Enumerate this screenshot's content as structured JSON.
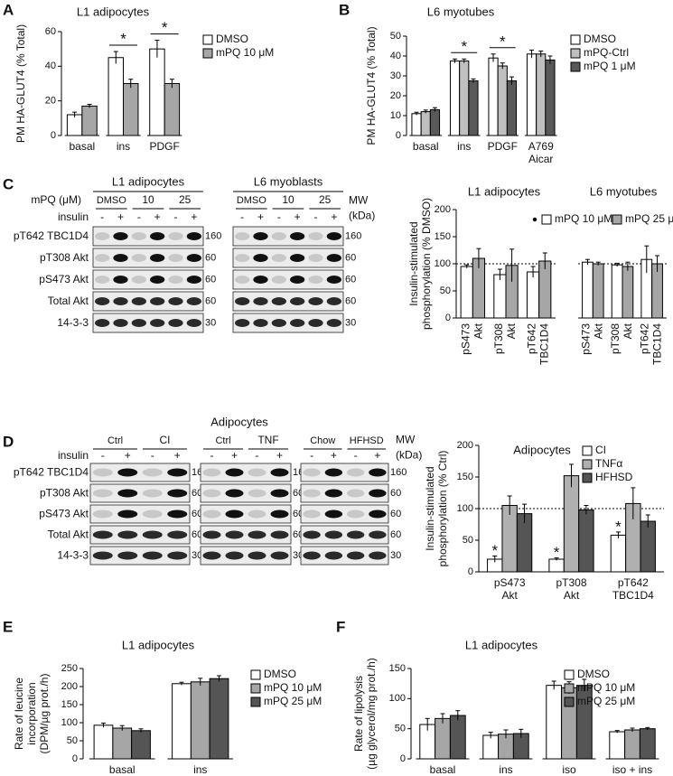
{
  "panel_letters": [
    "A",
    "B",
    "C",
    "D",
    "E",
    "F"
  ],
  "chart_data": [
    {
      "type": "bar",
      "title": "L1 adipocytes",
      "ylabel": "PM HA-GLUT4 (% Total)",
      "categories": [
        "basal",
        "ins",
        "PDGF"
      ],
      "ylim": [
        0,
        60
      ],
      "yticks": [
        0,
        20,
        40,
        60
      ],
      "series": [
        {
          "name": "DMSO",
          "color": "#ffffff",
          "values": [
            12,
            45,
            50
          ],
          "errors": [
            1.5,
            3.5,
            5
          ]
        },
        {
          "name": "mPQ 10 μM",
          "color": "#a6a6a6",
          "values": [
            17,
            30,
            30
          ],
          "errors": [
            1,
            2.5,
            2.5
          ]
        }
      ],
      "annotations": [
        {
          "text": "*",
          "category": "ins"
        },
        {
          "text": "*",
          "category": "PDGF"
        }
      ]
    },
    {
      "type": "bar",
      "title": "L6 myotubes",
      "ylabel": "PM HA-GLUT4 (% Total)",
      "categories": [
        "basal",
        "ins",
        "PDGF",
        "A769\nAicar"
      ],
      "ylim": [
        0,
        50
      ],
      "yticks": [
        0,
        10,
        20,
        30,
        40,
        50
      ],
      "series": [
        {
          "name": "DMSO",
          "color": "#ffffff",
          "values": [
            11,
            37.5,
            39,
            41
          ],
          "errors": [
            0.7,
            1,
            2,
            2
          ]
        },
        {
          "name": "mPQ-Ctrl",
          "color": "#bfbfbf",
          "values": [
            12,
            37.5,
            35,
            41
          ],
          "errors": [
            0.8,
            1,
            1.5,
            1.5
          ]
        },
        {
          "name": "mPQ 1 μM",
          "color": "#595959",
          "values": [
            13,
            27.5,
            27.5,
            38
          ],
          "errors": [
            1,
            1,
            2,
            2
          ]
        }
      ],
      "annotations": [
        {
          "text": "*",
          "category": "ins"
        },
        {
          "text": "*",
          "category": "PDGF"
        }
      ]
    },
    {
      "type": "bar",
      "title": "L1 adipocytes",
      "ylabel": "Insulin-stimulated\nphosphorylation (% DMSO)",
      "categories": [
        "pS473\nAkt",
        "pT308\nAkt",
        "pT642\nTBC1D4"
      ],
      "ylim": [
        0,
        200
      ],
      "yticks": [
        0,
        50,
        100,
        150,
        200
      ],
      "reference_line": 100,
      "series": [
        {
          "name": "mPQ 10 μM",
          "color": "#ffffff",
          "values": [
            95,
            80,
            85
          ],
          "errors": [
            3,
            10,
            10
          ]
        },
        {
          "name": "mPQ 25 μM",
          "color": "#a6a6a6",
          "values": [
            110,
            97,
            105
          ],
          "errors": [
            18,
            30,
            15
          ]
        }
      ]
    },
    {
      "type": "bar",
      "title": "L6 myotubes",
      "categories": [
        "pS473\nAkt",
        "pT308\nAkt",
        "pT642\nTBC1D4"
      ],
      "ylim": [
        0,
        200
      ],
      "reference_line": 100,
      "series": [
        {
          "color": "#ffffff",
          "values": [
            103,
            98,
            108
          ],
          "errors": [
            5,
            3,
            25
          ]
        },
        {
          "color": "#a6a6a6",
          "values": [
            100,
            95,
            100
          ],
          "errors": [
            3,
            8,
            15
          ]
        }
      ]
    },
    {
      "type": "bar",
      "title": "Adipocytes",
      "ylabel": "Insulin-stimulated\nphosphorylation (% Ctrl)",
      "categories": [
        "pS473\nAkt",
        "pT308\nAkt",
        "pT642\nTBC1D4"
      ],
      "ylim": [
        0,
        200
      ],
      "yticks": [
        0,
        50,
        100,
        150,
        200
      ],
      "reference_line": 100,
      "series": [
        {
          "name": "CI",
          "color": "#ffffff",
          "values": [
            20,
            20,
            58
          ],
          "errors": [
            5,
            2,
            5
          ]
        },
        {
          "name": "TNFα",
          "color": "#b0b0b0",
          "values": [
            105,
            152,
            108
          ],
          "errors": [
            15,
            18,
            25
          ]
        },
        {
          "name": "HFHSD",
          "color": "#555555",
          "values": [
            92,
            98,
            80
          ],
          "errors": [
            15,
            7,
            10
          ]
        }
      ],
      "annotations": [
        {
          "text": "*",
          "category": "pS473\nAkt",
          "series": "CI"
        },
        {
          "text": "*",
          "category": "pT308\nAkt",
          "series": "CI"
        },
        {
          "text": "*",
          "category": "pT642\nTBC1D4",
          "series": "CI"
        }
      ]
    },
    {
      "type": "bar",
      "title": "L1 adipocytes",
      "ylabel": "Rate of leucine\nincorporation\n(DPM/µg prot./h)",
      "categories": [
        "basal",
        "ins"
      ],
      "ylim": [
        0,
        250
      ],
      "yticks": [
        0,
        50,
        100,
        150,
        200,
        250
      ],
      "series": [
        {
          "name": "DMSO",
          "color": "#ffffff",
          "values": [
            93,
            208
          ],
          "errors": [
            6,
            4
          ]
        },
        {
          "name": "mPQ 10 μM",
          "color": "#a6a6a6",
          "values": [
            85,
            213
          ],
          "errors": [
            7,
            10
          ]
        },
        {
          "name": "mPQ 25 μM",
          "color": "#555555",
          "values": [
            78,
            222
          ],
          "errors": [
            5,
            8
          ]
        }
      ]
    },
    {
      "type": "bar",
      "title": "L1 adipocytes",
      "ylabel": "Rate of lipolysis\n(µg glycerol/mg prot./h)",
      "categories": [
        "basal",
        "ins",
        "iso",
        "iso + ins"
      ],
      "ylim": [
        0,
        150
      ],
      "yticks": [
        0,
        50,
        100,
        150
      ],
      "series": [
        {
          "name": "DMSO",
          "color": "#ffffff",
          "values": [
            57,
            39,
            122,
            45
          ],
          "errors": [
            10,
            5,
            7,
            2
          ]
        },
        {
          "name": "mPQ 10 μM",
          "color": "#a6a6a6",
          "values": [
            67,
            41,
            118,
            48
          ],
          "errors": [
            8,
            7,
            10,
            3
          ]
        },
        {
          "name": "mPQ 25 μM",
          "color": "#555555",
          "values": [
            72,
            42,
            122,
            50
          ],
          "errors": [
            8,
            7,
            10,
            2
          ]
        }
      ]
    }
  ],
  "blots": [
    {
      "treatment_label": "mPQ (μM)",
      "insulin_label": "insulin",
      "mw_label": "MW\n(kDa)",
      "panels": [
        {
          "title": "L1 adipocytes",
          "groups": [
            "DMSO",
            "10",
            "25"
          ],
          "insulin": [
            "-",
            "+",
            "-",
            "+",
            "-",
            "+"
          ]
        },
        {
          "title": "L6 myoblasts",
          "groups": [
            "DMSO",
            "10",
            "25"
          ],
          "insulin": [
            "-",
            "+",
            "-",
            "+",
            "-",
            "+"
          ]
        }
      ],
      "rows": [
        {
          "name": "pT642 TBC1D4",
          "mw": "160"
        },
        {
          "name": "pT308 Akt",
          "mw": "60"
        },
        {
          "name": "pS473 Akt",
          "mw": "60"
        },
        {
          "name": "Total Akt",
          "mw": "60"
        },
        {
          "name": "14-3-3",
          "mw": "30"
        }
      ]
    },
    {
      "title": "Adipocytes",
      "insulin_label": "insulin",
      "mw_label": "MW\n(kDa)",
      "panels": [
        {
          "groups": [
            "Ctrl",
            "CI"
          ],
          "insulin": [
            "-",
            "+",
            "-",
            "+"
          ]
        },
        {
          "groups": [
            "Ctrl",
            "TNF"
          ],
          "insulin": [
            "-",
            "+",
            "-",
            "+"
          ]
        },
        {
          "groups": [
            "Chow",
            "HFHSD"
          ],
          "insulin": [
            "-",
            "+",
            "-",
            "+"
          ]
        }
      ],
      "rows": [
        {
          "name": "pT642 TBC1D4",
          "mw": "160"
        },
        {
          "name": "pT308 Akt",
          "mw": "60"
        },
        {
          "name": "pS473 Akt",
          "mw": "60"
        },
        {
          "name": "Total Akt",
          "mw": "60"
        },
        {
          "name": "14-3-3",
          "mw": "30"
        }
      ]
    }
  ]
}
